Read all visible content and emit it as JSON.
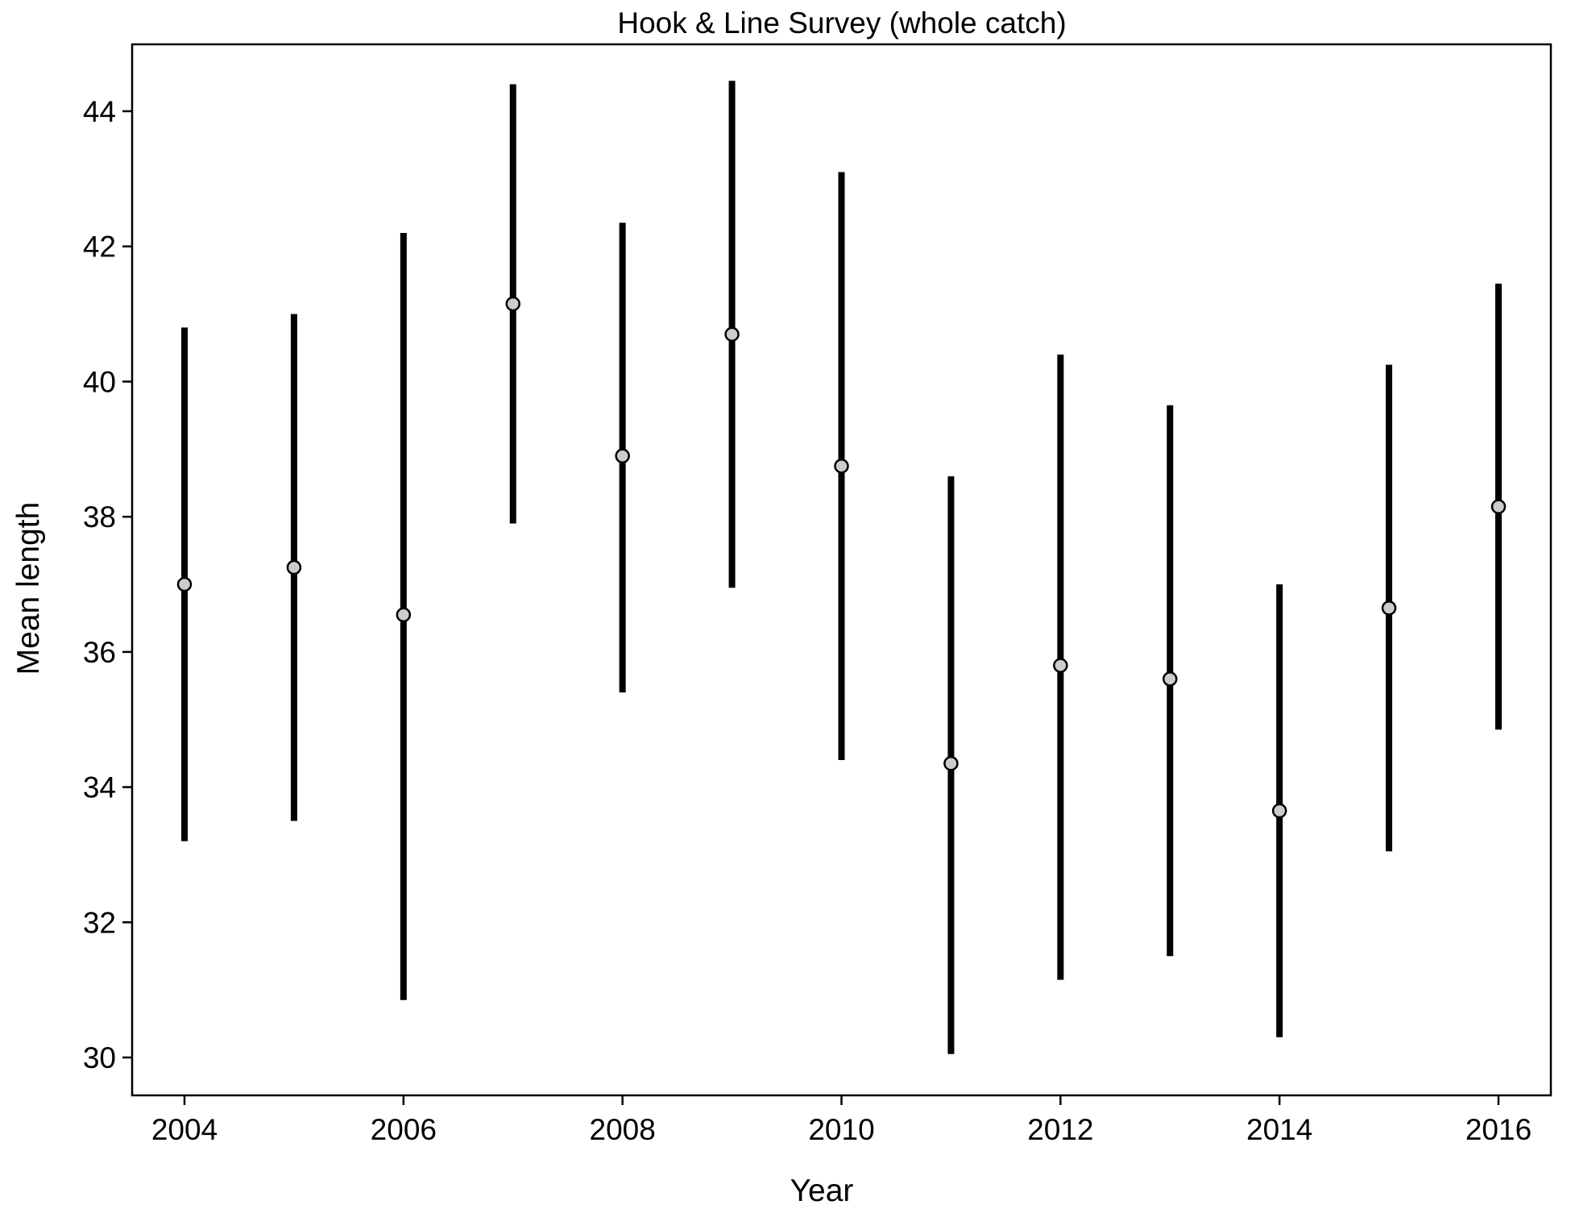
{
  "chart_data": {
    "type": "scatter",
    "title": "Hook & Line Survey (whole catch)",
    "xlabel": "Year",
    "ylabel": "Mean length",
    "xlim": [
      2003.5,
      2016.5
    ],
    "ylim": [
      29.5,
      45.0
    ],
    "x_ticks": [
      2004,
      2006,
      2008,
      2010,
      2012,
      2014,
      2016
    ],
    "y_ticks": [
      30,
      32,
      34,
      36,
      38,
      40,
      42,
      44
    ],
    "grid": false,
    "legend": "none",
    "points": [
      {
        "year": 2004,
        "mean": 37.0,
        "lower": 33.2,
        "upper": 40.8
      },
      {
        "year": 2005,
        "mean": 37.25,
        "lower": 33.5,
        "upper": 41.0
      },
      {
        "year": 2006,
        "mean": 36.55,
        "lower": 30.85,
        "upper": 42.2
      },
      {
        "year": 2007,
        "mean": 41.15,
        "lower": 37.9,
        "upper": 44.4
      },
      {
        "year": 2008,
        "mean": 38.9,
        "lower": 35.4,
        "upper": 42.35
      },
      {
        "year": 2009,
        "mean": 40.7,
        "lower": 36.95,
        "upper": 44.45
      },
      {
        "year": 2010,
        "mean": 38.75,
        "lower": 34.4,
        "upper": 43.1
      },
      {
        "year": 2011,
        "mean": 34.35,
        "lower": 30.05,
        "upper": 38.6
      },
      {
        "year": 2012,
        "mean": 35.8,
        "lower": 31.15,
        "upper": 40.4
      },
      {
        "year": 2013,
        "mean": 35.6,
        "lower": 31.5,
        "upper": 39.65
      },
      {
        "year": 2014,
        "mean": 33.65,
        "lower": 30.3,
        "upper": 37.0
      },
      {
        "year": 2015,
        "mean": 36.65,
        "lower": 33.05,
        "upper": 40.25
      },
      {
        "year": 2016,
        "mean": 38.15,
        "lower": 34.85,
        "upper": 41.45
      }
    ],
    "colors": {
      "interval": "#000000",
      "point_fill": "#cccccc",
      "point_stroke": "#000000",
      "frame": "#000000"
    }
  }
}
